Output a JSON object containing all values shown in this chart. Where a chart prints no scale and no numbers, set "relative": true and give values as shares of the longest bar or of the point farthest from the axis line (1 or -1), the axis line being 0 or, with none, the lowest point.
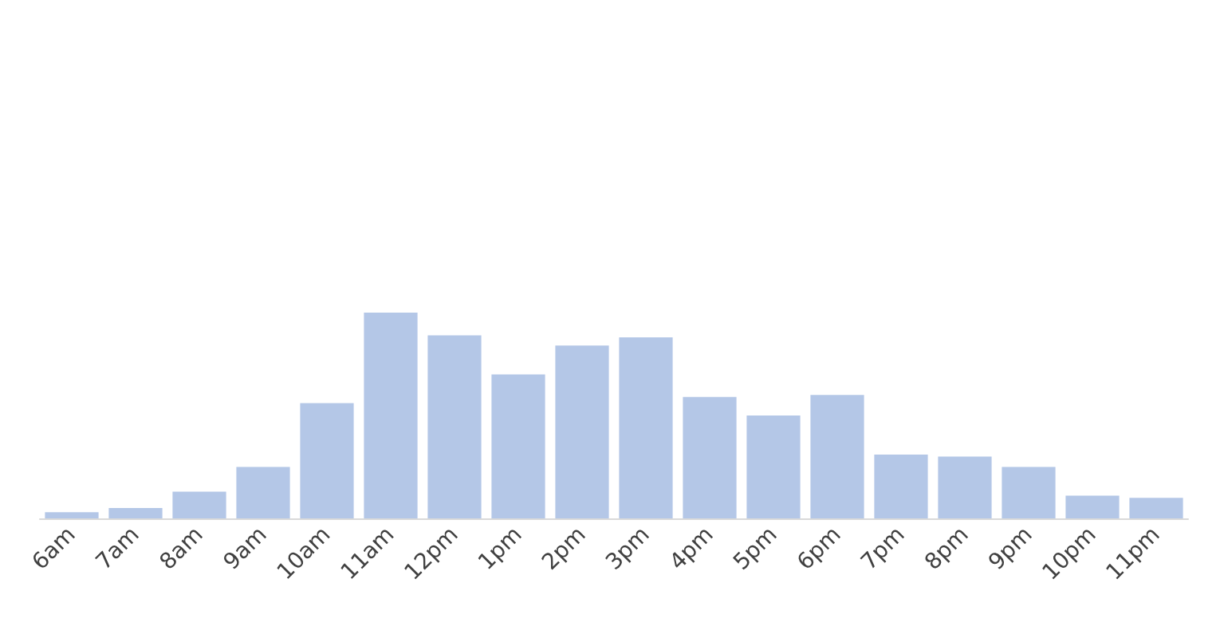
{
  "chart_data": {
    "type": "bar",
    "relative": true,
    "categories": [
      "6am",
      "7am",
      "8am",
      "9am",
      "10am",
      "11am",
      "12pm",
      "1pm",
      "2pm",
      "3pm",
      "4pm",
      "5pm",
      "6pm",
      "7pm",
      "8pm",
      "9pm",
      "10pm",
      "11pm"
    ],
    "values": [
      0.03,
      0.05,
      0.13,
      0.25,
      0.56,
      1,
      0.89,
      0.7,
      0.84,
      0.88,
      0.59,
      0.5,
      0.6,
      0.31,
      0.3,
      0.25,
      0.11,
      0.1
    ],
    "color": "#b4c7e7"
  }
}
